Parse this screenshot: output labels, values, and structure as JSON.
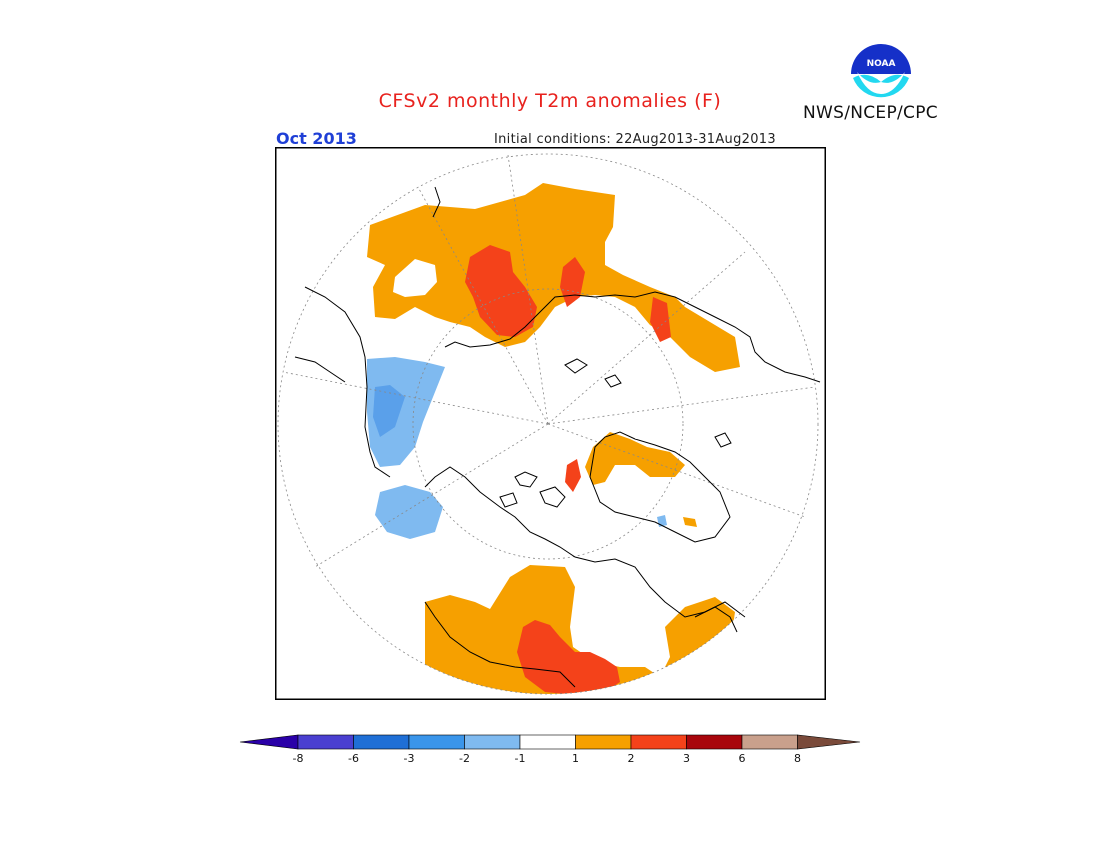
{
  "title": "CFSv2 monthly T2m anomalies (F)",
  "valid_month": "Oct 2013",
  "initial_conditions": "Initial conditions: 22Aug2013-31Aug2013",
  "agency": "NWS/NCEP/CPC",
  "logo": {
    "text": "NOAA",
    "icon": "noaa-logo"
  },
  "map": {
    "projection": "north-polar-stereographic",
    "graticule": "dotted"
  },
  "colorbar": {
    "labels": [
      "-8",
      "-6",
      "-3",
      "-2",
      "-1",
      "1",
      "2",
      "3",
      "6",
      "8"
    ],
    "colors": [
      "#2a00a8",
      "#4a3fd0",
      "#1f6fd6",
      "#3a95ea",
      "#7fbaf0",
      "#ffffff",
      "#f6a000",
      "#f4421a",
      "#a8060c",
      "#c9a08c",
      "#7a4a3a"
    ]
  },
  "colors": {
    "title": "#e8221e",
    "month": "#1f3fd6",
    "warm1": "#f6a000",
    "warm2": "#f4421a",
    "warm3": "#a8060c",
    "cool1": "#7fbaf0",
    "cool2": "#5aa0ea"
  }
}
